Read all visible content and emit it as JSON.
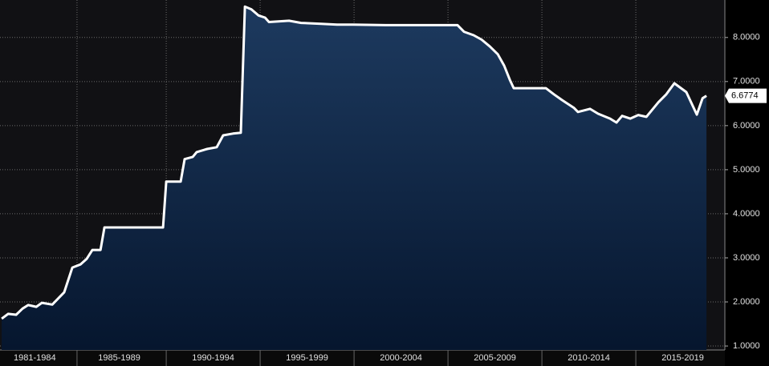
{
  "chart_data": {
    "type": "area",
    "x": [
      1981.24,
      1981.58,
      1982.01,
      1982.35,
      1982.65,
      1983.08,
      1983.38,
      1983.93,
      1984.57,
      1985.0,
      1985.43,
      1985.77,
      1986.07,
      1986.5,
      1986.71,
      1989.83,
      1990.0,
      1990.77,
      1990.98,
      1991.41,
      1991.62,
      1992.18,
      1992.69,
      1993.03,
      1993.55,
      1993.97,
      1994.19,
      1994.53,
      1994.91,
      1995.26,
      1995.47,
      1996.54,
      1997.18,
      1998.25,
      1999.1,
      1999.96,
      2001.67,
      2005.51,
      2005.85,
      2006.37,
      2006.79,
      2007.22,
      2007.65,
      2007.99,
      2008.29,
      2008.5,
      2010.21,
      2010.64,
      2011.07,
      2011.71,
      2011.92,
      2012.56,
      2012.99,
      2013.63,
      2013.97,
      2014.27,
      2014.7,
      2015.13,
      2015.56,
      2016.2,
      2016.62,
      2017.05,
      2017.69,
      2018.25,
      2018.55,
      2018.76
    ],
    "series": [
      {
        "color": "#ffffff",
        "fill_top": "#1d3a5f",
        "fill_bottom": "#06162e",
        "values": [
          1.62,
          1.73,
          1.71,
          1.85,
          1.93,
          1.89,
          1.98,
          1.94,
          2.22,
          2.78,
          2.85,
          2.98,
          3.18,
          3.18,
          3.69,
          3.69,
          4.73,
          4.73,
          5.24,
          5.29,
          5.4,
          5.47,
          5.51,
          5.78,
          5.82,
          5.84,
          8.7,
          8.64,
          8.5,
          8.45,
          8.35,
          8.38,
          8.33,
          8.31,
          8.29,
          8.29,
          8.28,
          8.28,
          8.13,
          8.05,
          7.95,
          7.8,
          7.62,
          7.36,
          7.04,
          6.85,
          6.85,
          6.71,
          6.58,
          6.4,
          6.31,
          6.38,
          6.27,
          6.16,
          6.07,
          6.22,
          6.16,
          6.24,
          6.2,
          6.53,
          6.71,
          6.96,
          6.76,
          6.25,
          6.62,
          6.6774
        ],
        "last_value_label": "6.6774"
      }
    ],
    "xlim": [
      1981.15,
      2019.74
    ],
    "xticks": [
      {
        "value": 1983.0,
        "label": "1981-1984"
      },
      {
        "value": 1987.5,
        "label": "1985-1989"
      },
      {
        "value": 1992.5,
        "label": "1990-1994"
      },
      {
        "value": 1997.5,
        "label": "1995-1999"
      },
      {
        "value": 2002.5,
        "label": "2000-2004"
      },
      {
        "value": 2007.5,
        "label": "2005-2009"
      },
      {
        "value": 2012.5,
        "label": "2010-2014"
      },
      {
        "value": 2017.5,
        "label": "2015-2019"
      }
    ],
    "ylim": [
      0.91,
      8.85
    ],
    "yticks": [
      {
        "value": 1,
        "label": "1.0000"
      },
      {
        "value": 2,
        "label": "2.0000"
      },
      {
        "value": 3,
        "label": "3.0000"
      },
      {
        "value": 4,
        "label": "4.0000"
      },
      {
        "value": 5,
        "label": "5.0000"
      },
      {
        "value": 6,
        "label": "6.0000"
      },
      {
        "value": 7,
        "label": "7.0000"
      },
      {
        "value": 8,
        "label": "8.0000"
      }
    ],
    "grid": true
  }
}
